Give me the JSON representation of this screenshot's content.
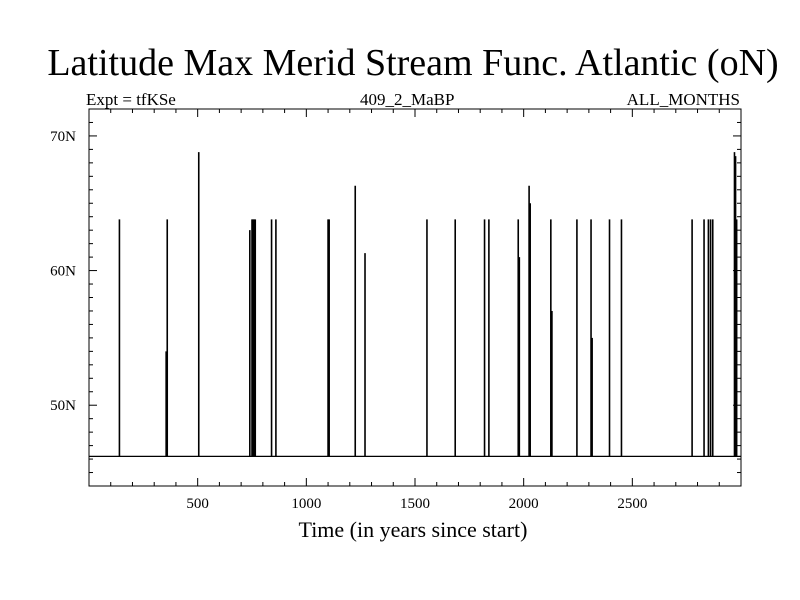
{
  "chart_data": {
    "type": "line",
    "title": "Latitude Max Merid Stream Func. Atlantic (oN)",
    "subtitle_left": "Expt = tfKSe",
    "subtitle_center": "409_2_MaBP",
    "subtitle_right": "ALL_MONTHS",
    "xlabel": "Time (in years since start)",
    "ylabel": "",
    "xlim": [
      0,
      3000
    ],
    "ylim": [
      44,
      72
    ],
    "x_ticks": [
      500,
      1000,
      1500,
      2000,
      2500
    ],
    "x_tick_labels": [
      "500",
      "1000",
      "1500",
      "2000",
      "2500"
    ],
    "y_ticks": [
      50,
      60,
      70
    ],
    "y_tick_labels": [
      "50N",
      "60N",
      "70N"
    ],
    "grid": false,
    "baseline": 46.2,
    "series": [
      {
        "x": [
          140,
          355,
          360,
          505,
          740,
          750,
          755,
          760,
          765,
          840,
          860,
          1100,
          1105,
          1225,
          1270,
          1555,
          1685,
          1820,
          1840,
          1975,
          1980,
          2025,
          2030,
          2125,
          2130,
          2245,
          2310,
          2315,
          2395,
          2450,
          2775,
          2830,
          2850,
          2860,
          2870,
          2970,
          2975,
          2980
        ],
        "values": [
          63.8,
          54,
          63.8,
          68.8,
          63,
          63.8,
          63.8,
          63.8,
          63.8,
          63.8,
          63.8,
          63.8,
          63.8,
          66.3,
          61.3,
          63.8,
          63.8,
          63.8,
          63.8,
          63.8,
          61,
          66.3,
          65,
          63.8,
          57,
          63.8,
          63.8,
          55,
          63.8,
          63.8,
          63.8,
          63.8,
          63.8,
          63.8,
          63.8,
          68.8,
          68.5,
          63.8
        ]
      }
    ]
  }
}
